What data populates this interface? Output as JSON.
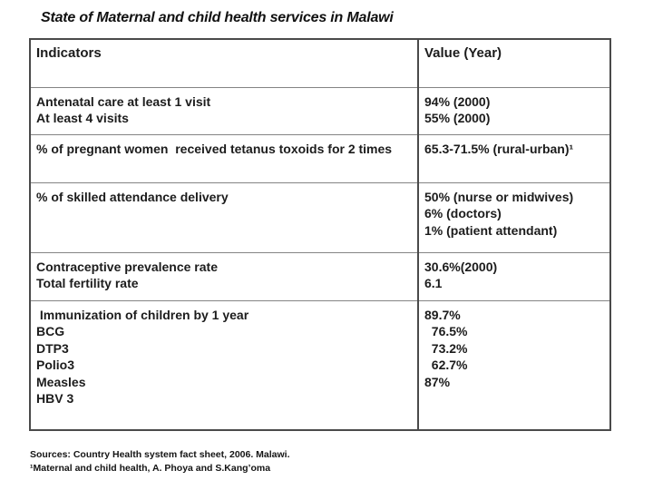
{
  "title": "State of Maternal and child health services in Malawi",
  "table": {
    "headers": [
      "Indicators",
      "Value (Year)"
    ],
    "rows": [
      {
        "indicator": "Antenatal care at least 1 visit\nAt least 4 visits",
        "value": "94% (2000)\n55% (2000)"
      },
      {
        "indicator": "% of pregnant women  received tetanus toxoids for 2 times",
        "value": "65.3-71.5% (rural-urban)¹"
      },
      {
        "indicator": "% of skilled attendance delivery",
        "value": "50% (nurse or midwives)\n6% (doctors)\n1% (patient attendant)"
      },
      {
        "indicator": "Contraceptive prevalence rate\nTotal fertility rate",
        "value": "30.6%(2000)\n6.1"
      },
      {
        "indicator": " Immunization of children by 1 year\nBCG\nDTP3\nPolio3\nMeasles\nHBV 3",
        "value": "89.7%\n  76.5%\n  73.2%\n  62.7%\n87%"
      }
    ]
  },
  "footer": {
    "line1": "Sources: Country Health system fact sheet, 2006. Malawi.",
    "line2": "¹Maternal and child health, A. Phoya and S.Kang’oma"
  },
  "colors": {
    "background": "#ffffff",
    "text": "#1c1c1c",
    "outer_border": "#4a4a4a",
    "inner_border": "#848484"
  }
}
